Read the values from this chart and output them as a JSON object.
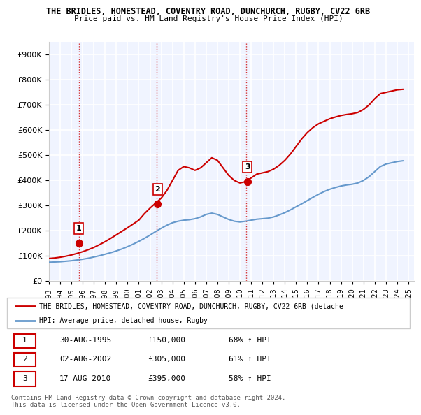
{
  "title1": "THE BRIDLES, HOMESTEAD, COVENTRY ROAD, DUNCHURCH, RUGBY, CV22 6RB",
  "title2": "Price paid vs. HM Land Registry's House Price Index (HPI)",
  "ylabel": "",
  "ylim": [
    0,
    950000
  ],
  "yticks": [
    0,
    100000,
    200000,
    300000,
    400000,
    500000,
    600000,
    700000,
    800000,
    900000
  ],
  "ytick_labels": [
    "£0",
    "£100K",
    "£200K",
    "£300K",
    "£400K",
    "£500K",
    "£600K",
    "£700K",
    "£800K",
    "£900K"
  ],
  "background_color": "#ffffff",
  "plot_bg_color": "#f0f4ff",
  "grid_color": "#ffffff",
  "sale_dates": [
    "1995-08-30",
    "2002-08-02",
    "2010-08-17"
  ],
  "sale_prices": [
    150000,
    305000,
    395000
  ],
  "sale_labels": [
    "1",
    "2",
    "3"
  ],
  "legend_line1": "THE BRIDLES, HOMESTEAD, COVENTRY ROAD, DUNCHURCH, RUGBY, CV22 6RB (detache",
  "legend_line2": "HPI: Average price, detached house, Rugby",
  "table_rows": [
    [
      "1",
      "30-AUG-1995",
      "£150,000",
      "68% ↑ HPI"
    ],
    [
      "2",
      "02-AUG-2002",
      "£305,000",
      "61% ↑ HPI"
    ],
    [
      "3",
      "17-AUG-2010",
      "£395,000",
      "58% ↑ HPI"
    ]
  ],
  "footnote": "Contains HM Land Registry data © Crown copyright and database right 2024.\nThis data is licensed under the Open Government Licence v3.0.",
  "hpi_years": [
    1993,
    1993.5,
    1994,
    1994.5,
    1995,
    1995.5,
    1996,
    1996.5,
    1997,
    1997.5,
    1998,
    1998.5,
    1999,
    1999.5,
    2000,
    2000.5,
    2001,
    2001.5,
    2002,
    2002.5,
    2003,
    2003.5,
    2004,
    2004.5,
    2005,
    2005.5,
    2006,
    2006.5,
    2007,
    2007.5,
    2008,
    2008.5,
    2009,
    2009.5,
    2010,
    2010.5,
    2011,
    2011.5,
    2012,
    2012.5,
    2013,
    2013.5,
    2014,
    2014.5,
    2015,
    2015.5,
    2016,
    2016.5,
    2017,
    2017.5,
    2018,
    2018.5,
    2019,
    2019.5,
    2020,
    2020.5,
    2021,
    2021.5,
    2022,
    2022.5,
    2023,
    2023.5,
    2024,
    2024.5
  ],
  "hpi_values": [
    75000,
    76000,
    77000,
    79000,
    81000,
    84000,
    87000,
    91000,
    96000,
    101000,
    107000,
    113000,
    120000,
    128000,
    137000,
    147000,
    158000,
    170000,
    183000,
    197000,
    210000,
    222000,
    232000,
    238000,
    242000,
    244000,
    248000,
    255000,
    265000,
    270000,
    265000,
    255000,
    245000,
    238000,
    235000,
    238000,
    242000,
    246000,
    248000,
    250000,
    255000,
    263000,
    272000,
    283000,
    295000,
    307000,
    320000,
    333000,
    345000,
    356000,
    365000,
    372000,
    378000,
    382000,
    385000,
    390000,
    400000,
    415000,
    435000,
    455000,
    465000,
    470000,
    475000,
    478000
  ],
  "price_line_years": [
    1993,
    1993.5,
    1994,
    1994.5,
    1995,
    1995.5,
    1996,
    1996.5,
    1997,
    1997.5,
    1998,
    1998.5,
    1999,
    1999.5,
    2000,
    2000.5,
    2001,
    2001.5,
    2002,
    2002.5,
    2003,
    2003.5,
    2004,
    2004.5,
    2005,
    2005.5,
    2006,
    2006.5,
    2007,
    2007.5,
    2008,
    2008.5,
    2009,
    2009.5,
    2010,
    2010.5,
    2011,
    2011.5,
    2012,
    2012.5,
    2013,
    2013.5,
    2014,
    2014.5,
    2015,
    2015.5,
    2016,
    2016.5,
    2017,
    2017.5,
    2018,
    2018.5,
    2019,
    2019.5,
    2020,
    2020.5,
    2021,
    2021.5,
    2022,
    2022.5,
    2023,
    2023.5,
    2024,
    2024.5
  ],
  "price_line_values": [
    90000,
    92000,
    95000,
    99000,
    104000,
    110000,
    117000,
    125000,
    134000,
    145000,
    157000,
    170000,
    184000,
    198000,
    212000,
    227000,
    242000,
    268000,
    290000,
    310000,
    330000,
    360000,
    400000,
    440000,
    455000,
    450000,
    440000,
    450000,
    470000,
    490000,
    480000,
    450000,
    420000,
    400000,
    390000,
    395000,
    410000,
    425000,
    430000,
    435000,
    445000,
    460000,
    480000,
    505000,
    535000,
    565000,
    590000,
    610000,
    625000,
    635000,
    645000,
    652000,
    658000,
    662000,
    665000,
    670000,
    682000,
    700000,
    725000,
    745000,
    750000,
    755000,
    760000,
    762000
  ],
  "vline_years": [
    1995.67,
    2002.58,
    2010.58
  ],
  "vline_color": "#cc0000",
  "hpi_color": "#6699cc",
  "price_color": "#cc0000",
  "xtick_years": [
    1993,
    1994,
    1995,
    1996,
    1997,
    1998,
    1999,
    2000,
    2001,
    2002,
    2003,
    2004,
    2005,
    2006,
    2007,
    2008,
    2009,
    2010,
    2011,
    2012,
    2013,
    2014,
    2015,
    2016,
    2017,
    2018,
    2019,
    2020,
    2021,
    2022,
    2023,
    2024,
    2025
  ]
}
